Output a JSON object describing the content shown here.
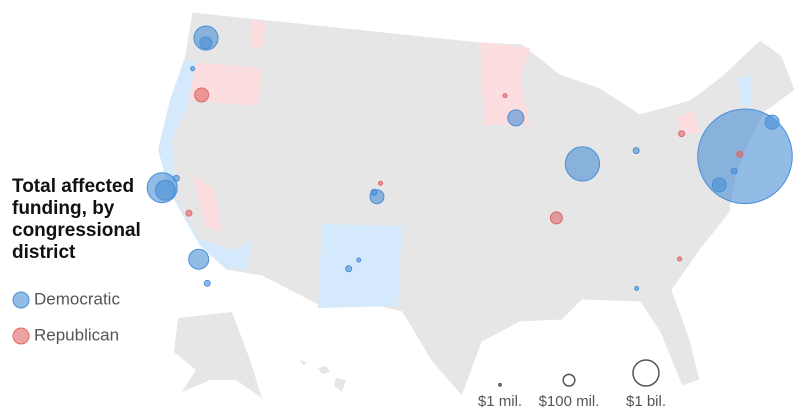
{
  "chart_data": {
    "type": "bubble-map",
    "title": "Total affected funding, by congressional district",
    "series": [
      {
        "name": "Democratic",
        "color": "#4a8fd6",
        "points": [
          {
            "lon": -74.0,
            "lat": 40.7,
            "value": 40000000000
          },
          {
            "lon": -87.7,
            "lat": 41.85,
            "value": 2200000000
          },
          {
            "lon": -122.3,
            "lat": 47.6,
            "value": 800000000
          },
          {
            "lon": -122.2,
            "lat": 47.3,
            "value": 110000000
          },
          {
            "lon": -122.4,
            "lat": 37.8,
            "value": 1500000000
          },
          {
            "lon": -122.1,
            "lat": 37.7,
            "value": 470000000
          },
          {
            "lon": -118.2,
            "lat": 34.05,
            "value": 470000000
          },
          {
            "lon": -121.5,
            "lat": 38.6,
            "value": 15000000
          },
          {
            "lon": -117.15,
            "lat": 32.7,
            "value": 15000000
          },
          {
            "lon": -122.7,
            "lat": 45.5,
            "value": 5000000
          },
          {
            "lon": -93.27,
            "lat": 44.98,
            "value": 250000000
          },
          {
            "lon": -104.99,
            "lat": 39.74,
            "value": 170000000
          },
          {
            "lon": -105.27,
            "lat": 40.0,
            "value": 15000000
          },
          {
            "lon": -83.0,
            "lat": 42.3,
            "value": 15000000
          },
          {
            "lon": -71.06,
            "lat": 42.36,
            "value": 170000000
          },
          {
            "lon": -75.16,
            "lat": 39.95,
            "value": 15000000
          },
          {
            "lon": -76.6,
            "lat": 39.3,
            "value": 170000000
          },
          {
            "lon": -106.65,
            "lat": 35.08,
            "value": 15000000
          },
          {
            "lon": -105.94,
            "lat": 35.69,
            "value": 5000000
          },
          {
            "lon": -84.4,
            "lat": 33.75,
            "value": 5000000
          }
        ]
      },
      {
        "name": "Republican",
        "color": "#e06666",
        "points": [
          {
            "lon": -121.3,
            "lat": 44.06,
            "value": 170000000
          },
          {
            "lon": -90.2,
            "lat": 38.6,
            "value": 110000000
          },
          {
            "lon": -94.2,
            "lat": 46.4,
            "value": 5000000
          },
          {
            "lon": -119.8,
            "lat": 36.7,
            "value": 15000000
          },
          {
            "lon": -80.8,
            "lat": 35.2,
            "value": 5000000
          },
          {
            "lon": -78.9,
            "lat": 42.9,
            "value": 15000000
          },
          {
            "lon": -74.4,
            "lat": 40.9,
            "value": 15000000
          },
          {
            "lon": -104.8,
            "lat": 40.6,
            "value": 5000000
          }
        ]
      }
    ],
    "size_legend": [
      {
        "value": 1000000,
        "label": "$1 mil."
      },
      {
        "value": 100000000,
        "label": "$100 mil."
      },
      {
        "value": 1000000000,
        "label": "$1 bil."
      }
    ]
  }
}
